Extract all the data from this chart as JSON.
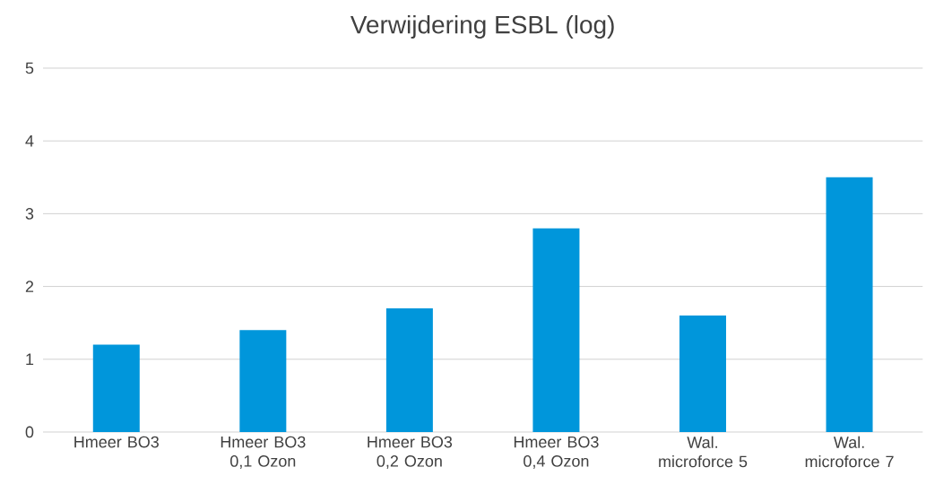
{
  "chart_data": {
    "type": "bar",
    "title": "Verwijdering ESBL (log)",
    "categories": [
      "Hmeer BO3",
      "Hmeer BO3 0,1 Ozon",
      "Hmeer BO3 0,2 Ozon",
      "Hmeer BO3 0,4 Ozon",
      "Wal. microforce 5",
      "Wal. microforce 7"
    ],
    "values": [
      1.2,
      1.4,
      1.7,
      2.8,
      1.6,
      3.5
    ],
    "color": "#0096db",
    "ylim": [
      0,
      5
    ],
    "yticks": [
      0,
      1,
      2,
      3,
      4,
      5
    ],
    "grid": "y"
  }
}
